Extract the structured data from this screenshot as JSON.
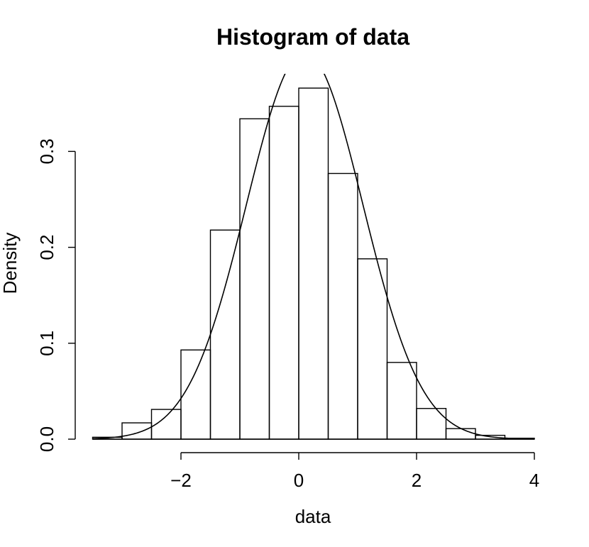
{
  "chart_data": {
    "type": "bar",
    "title": "Histogram of data",
    "xlabel": "data",
    "ylabel": "Density",
    "xlim": [
      -3.5,
      4
    ],
    "ylim": [
      0,
      0.3
    ],
    "x_ticks": [
      "−2",
      "0",
      "2",
      "4"
    ],
    "x_tick_values": [
      -2,
      0,
      2,
      4
    ],
    "y_ticks": [
      "0.0",
      "0.1",
      "0.2",
      "0.3"
    ],
    "y_tick_values": [
      0,
      0.1,
      0.2,
      0.3
    ],
    "bin_edges": [
      -3.5,
      -3.0,
      -2.5,
      -2.0,
      -1.5,
      -1.0,
      -0.5,
      0.0,
      0.5,
      1.0,
      1.5,
      2.0,
      2.5,
      3.0,
      3.5,
      4.0
    ],
    "values": [
      0.002,
      0.017,
      0.031,
      0.093,
      0.218,
      0.334,
      0.347,
      0.366,
      0.277,
      0.188,
      0.08,
      0.032,
      0.011,
      0.004,
      0.001
    ],
    "overlay": {
      "type": "line",
      "curve": "normal density",
      "mean": 0.1,
      "sd": 0.99
    },
    "grid": false,
    "legend": "none"
  }
}
